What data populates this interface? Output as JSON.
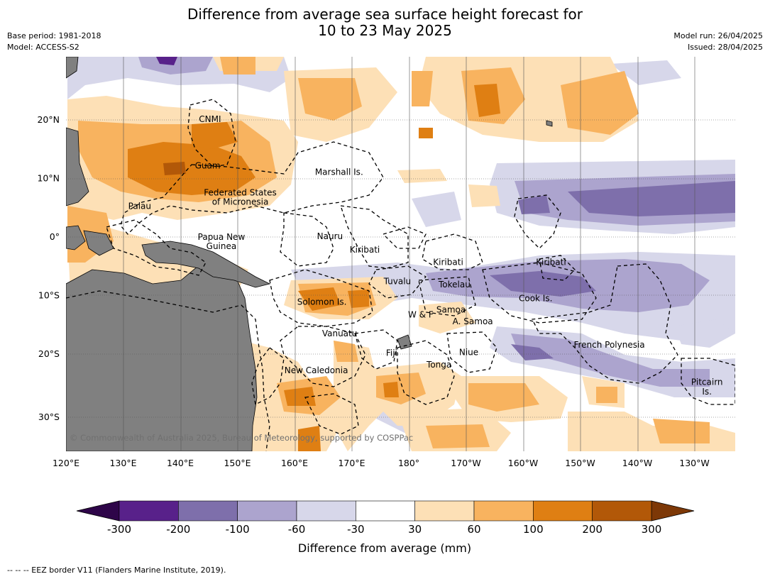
{
  "title_line1": "Difference from average sea surface height forecast for",
  "title_line2": "10 to 23 May 2025",
  "meta_left": {
    "base_period": "Base period: 1981-2018",
    "model": "Model: ACCESS-S2"
  },
  "meta_right": {
    "model_run": "Model run: 26/04/2025",
    "issued": "Issued: 28/04/2025"
  },
  "lon_labels": [
    "120°E",
    "130°E",
    "140°E",
    "150°E",
    "160°E",
    "170°E",
    "180°",
    "170°W",
    "160°W",
    "150°W",
    "140°W",
    "130°W"
  ],
  "lat_labels": [
    "20°N",
    "10°N",
    "0°",
    "10°S",
    "20°S",
    "30°S"
  ],
  "place_labels": [
    {
      "text": "CNMI",
      "lon": 145.2,
      "lat": 20.1
    },
    {
      "text": "Guam",
      "lon": 144.8,
      "lat": 12.2
    },
    {
      "text": "Marshall Is.",
      "lon": 167.8,
      "lat": 11.1
    },
    {
      "text": "Federated States",
      "lon": 150.5,
      "lat": 7.6
    },
    {
      "text": "of Micronesia",
      "lon": 150.5,
      "lat": 6.0
    },
    {
      "text": "Palau",
      "lon": 132.9,
      "lat": 5.3
    },
    {
      "text": "Papua New",
      "lon": 147.2,
      "lat": 0.0
    },
    {
      "text": "Guinea",
      "lon": 147.2,
      "lat": -1.6
    },
    {
      "text": "Nauru",
      "lon": 166.2,
      "lat": 0.1
    },
    {
      "text": "Kiribati",
      "lon": 172.3,
      "lat": -2.2
    },
    {
      "text": "Kiribati",
      "lon": -173.1,
      "lat": -4.3
    },
    {
      "text": "Kiribati",
      "lon": -155.1,
      "lat": -4.3
    },
    {
      "text": "Tuvalu",
      "lon": 178.0,
      "lat": -7.6
    },
    {
      "text": "Tokelau",
      "lon": -172.0,
      "lat": -8.1
    },
    {
      "text": "Solomon Is.",
      "lon": 164.8,
      "lat": -11.1
    },
    {
      "text": "Cook Is.",
      "lon": -157.8,
      "lat": -10.5
    },
    {
      "text": "Samoa",
      "lon": -172.6,
      "lat": -12.4
    },
    {
      "text": "W & F",
      "lon": -177.9,
      "lat": -13.3
    },
    {
      "text": "A. Samoa",
      "lon": -168.8,
      "lat": -14.4
    },
    {
      "text": "Vanuatu",
      "lon": 167.9,
      "lat": -16.5
    },
    {
      "text": "Fiji",
      "lon": 177.0,
      "lat": -19.8
    },
    {
      "text": "Niue",
      "lon": -169.5,
      "lat": -19.7
    },
    {
      "text": "French Polynesia",
      "lon": -144.9,
      "lat": -18.4
    },
    {
      "text": "Tonga",
      "lon": -174.7,
      "lat": -21.8
    },
    {
      "text": "New Caledonia",
      "lon": 163.8,
      "lat": -22.8
    },
    {
      "text": "Pitcairn",
      "lon": -127.8,
      "lat": -24.8
    },
    {
      "text": "Is.",
      "lon": -127.8,
      "lat": -26.4
    }
  ],
  "copyright": "© Commonwealth of Australia 2025, Bureau of Meteorology, supported by COSPPac",
  "colorbar": {
    "ticks": [
      "-300",
      "-200",
      "-100",
      "-60",
      "-30",
      "30",
      "60",
      "100",
      "200",
      "300"
    ],
    "colors": [
      "#58218a",
      "#7e6fab",
      "#aca4ce",
      "#d7d7ea",
      "#ffffff",
      "#fde0b6",
      "#f8b35f",
      "#df7f13",
      "#b25808"
    ],
    "under_color": "#2e0549",
    "over_color": "#7d3807",
    "label": "Difference from average (mm)"
  },
  "land_color": "#808080",
  "footnote": "--  --  -- EEZ border V11 (Flanders Marine Institute, 2019)."
}
